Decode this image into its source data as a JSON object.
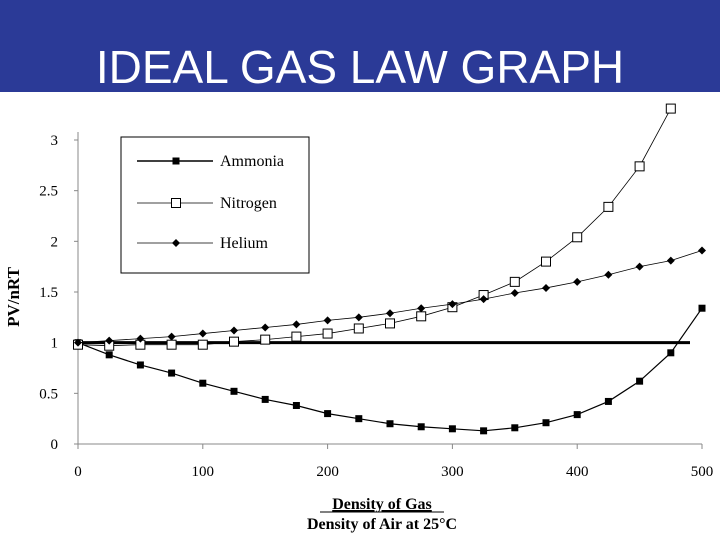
{
  "slide": {
    "title": "IDEAL GAS LAW GRAPH",
    "colors": {
      "title_bar": "#2b3a97",
      "title_text": "#ffffff",
      "ink": "#000000"
    }
  },
  "chart_data": {
    "type": "line",
    "ylabel": "PV/nRT",
    "xlabel": "Density of Gas",
    "xlabel_denominator": "Density of Air at 25°C",
    "xlim": [
      0,
      500
    ],
    "ylim": [
      0,
      3
    ],
    "x_ticks": [
      0,
      100,
      200,
      300,
      400,
      500
    ],
    "x_tick_labels": [
      "0",
      "100",
      "200",
      "300",
      "400",
      "500"
    ],
    "y_ticks": [
      0,
      0.5,
      1,
      1.5,
      2,
      2.5,
      3
    ],
    "y_tick_labels": [
      "0",
      "0.5",
      "1",
      "1.5",
      "2",
      "2.5",
      "3"
    ],
    "grid": false,
    "legend_position": "top-left",
    "reference_line": {
      "y": 1
    },
    "series": [
      {
        "name": "Ammonia",
        "marker": "filled-square",
        "x": [
          0,
          25,
          50,
          75,
          100,
          125,
          150,
          175,
          200,
          225,
          250,
          275,
          300,
          325,
          350,
          375,
          400,
          425,
          450,
          475,
          500
        ],
        "y": [
          1.0,
          0.88,
          0.78,
          0.7,
          0.6,
          0.52,
          0.44,
          0.38,
          0.3,
          0.25,
          0.2,
          0.17,
          0.15,
          0.13,
          0.16,
          0.21,
          0.29,
          0.42,
          0.62,
          0.9,
          1.34
        ]
      },
      {
        "name": "Nitrogen",
        "marker": "open-square",
        "x": [
          0,
          25,
          50,
          75,
          100,
          125,
          150,
          175,
          200,
          225,
          250,
          275,
          300,
          325,
          350,
          375,
          400,
          425,
          450,
          475
        ],
        "y": [
          0.98,
          0.97,
          0.98,
          0.98,
          0.98,
          1.01,
          1.03,
          1.06,
          1.09,
          1.14,
          1.19,
          1.26,
          1.35,
          1.47,
          1.6,
          1.8,
          2.04,
          2.34,
          2.74,
          3.31
        ]
      },
      {
        "name": "Helium",
        "marker": "filled-diamond",
        "x": [
          0,
          25,
          50,
          75,
          100,
          125,
          150,
          175,
          200,
          225,
          250,
          275,
          300,
          325,
          350,
          375,
          400,
          425,
          450,
          475,
          500
        ],
        "y": [
          1.0,
          1.02,
          1.04,
          1.06,
          1.09,
          1.12,
          1.15,
          1.18,
          1.22,
          1.25,
          1.29,
          1.34,
          1.38,
          1.43,
          1.49,
          1.54,
          1.6,
          1.67,
          1.75,
          1.81,
          1.91
        ]
      }
    ]
  }
}
